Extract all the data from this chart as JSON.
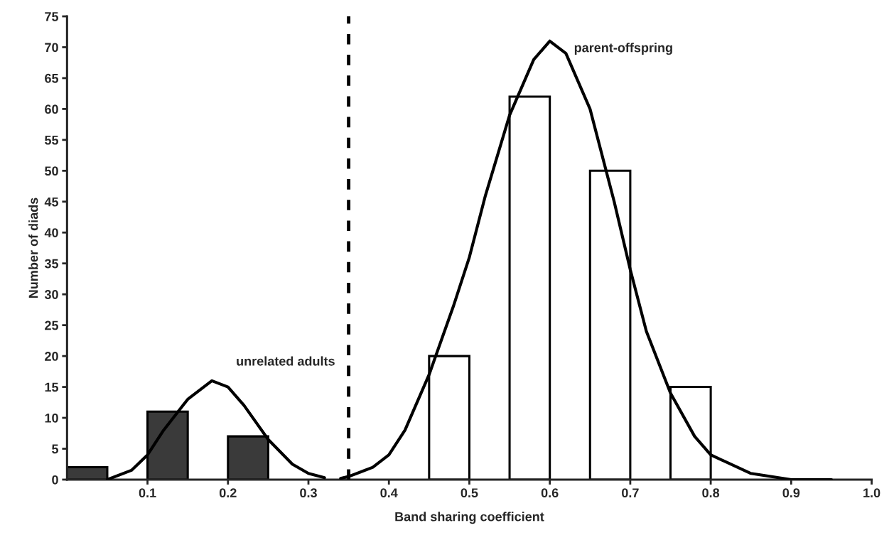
{
  "chart_data": {
    "type": "histogram",
    "xlabel": "Band sharing coefficient",
    "ylabel": "Number of diads",
    "bins": [
      0,
      0.05,
      0.1,
      0.15,
      0.2,
      0.25,
      0.3,
      0.35,
      0.4,
      0.45,
      0.5,
      0.55,
      0.6,
      0.65,
      0.7,
      0.75,
      0.8
    ],
    "values": [
      2,
      null,
      11,
      null,
      7,
      null,
      null,
      null,
      null,
      20,
      null,
      62,
      null,
      50,
      null,
      15
    ],
    "colors": [
      "#3a3a3a",
      null,
      "#3a3a3a",
      null,
      "#3a3a3a",
      null,
      null,
      null,
      null,
      "#ffffff",
      null,
      "#ffffff",
      null,
      "#ffffff",
      null,
      "#ffffff"
    ],
    "series": [
      {
        "type": "line",
        "name": "unrelated adults",
        "color": "#000000",
        "x": [
          0.05,
          0.08,
          0.1,
          0.12,
          0.15,
          0.18,
          0.2,
          0.22,
          0.25,
          0.28,
          0.3,
          0.32
        ],
        "values": [
          0,
          1.5,
          4,
          8,
          13,
          16,
          15,
          12,
          6.5,
          2.5,
          1,
          0.3
        ]
      },
      {
        "type": "line",
        "name": "parent-offspring",
        "color": "#000000",
        "x": [
          0.34,
          0.35,
          0.38,
          0.4,
          0.42,
          0.45,
          0.48,
          0.5,
          0.52,
          0.55,
          0.58,
          0.6,
          0.62,
          0.65,
          0.68,
          0.7,
          0.72,
          0.75,
          0.78,
          0.8,
          0.85,
          0.9,
          0.95
        ],
        "values": [
          0.2,
          0.5,
          2,
          4,
          8,
          17,
          28,
          36,
          46,
          59,
          68,
          71,
          69,
          60,
          45,
          34,
          24,
          14,
          7,
          4,
          1,
          0,
          0
        ]
      }
    ],
    "ref_lines": [
      {
        "axis": "x",
        "value": 0.35,
        "color": "#000000",
        "line_style": "dashed"
      }
    ],
    "xlim": [
      0,
      1.0
    ],
    "ylim": [
      0,
      75
    ],
    "xticks": [
      0.1,
      0.2,
      0.3,
      0.4,
      0.5,
      0.6,
      0.7,
      0.8,
      0.9,
      {
        "value": 1.0,
        "label": "1.0"
      }
    ],
    "yticks": [
      0,
      5,
      10,
      15,
      20,
      25,
      30,
      35,
      40,
      45,
      50,
      55,
      60,
      65,
      70,
      75
    ],
    "grid": false,
    "legend": false
  }
}
